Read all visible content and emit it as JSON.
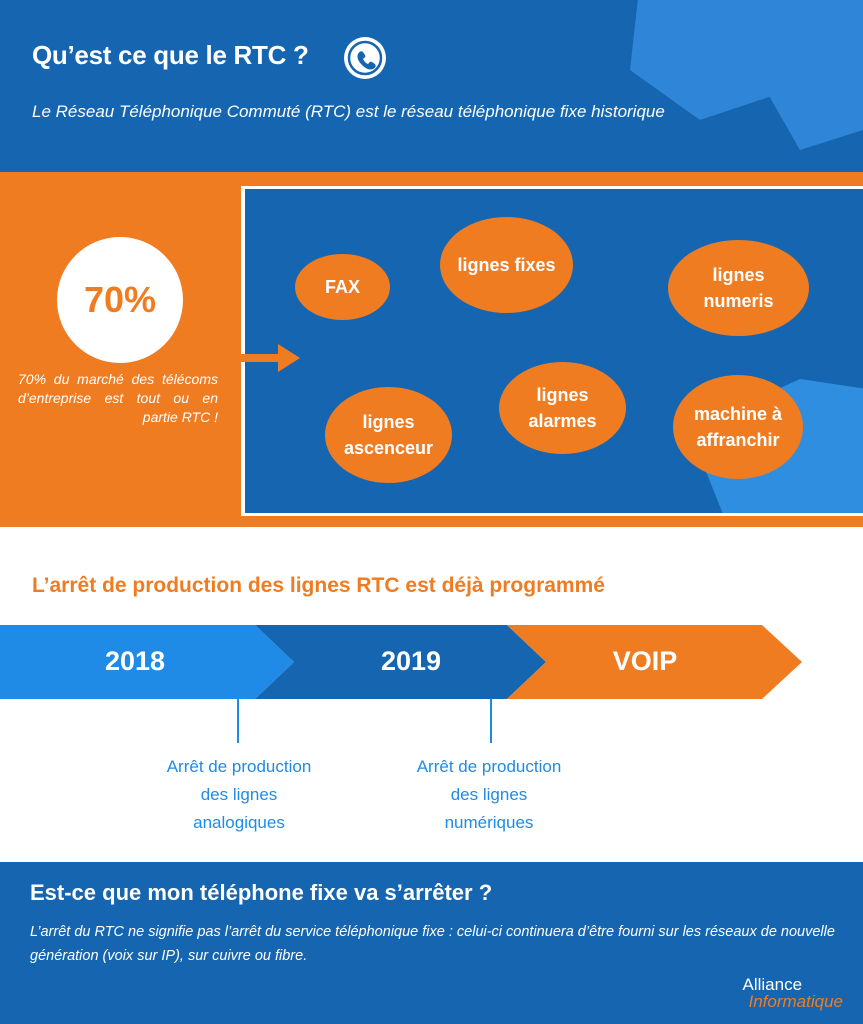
{
  "header": {
    "title": "Qu’est ce que le RTC ?",
    "subtitle": "Le Réseau Téléphonique Commuté (RTC) est le réseau téléphonique fixe historique",
    "icon": "phone-icon"
  },
  "stat": {
    "value": "70%",
    "description": "70% du marché des télécoms d’entreprise est tout ou en partie RTC !"
  },
  "services": [
    "FAX",
    "lignes fixes",
    "lignes numeris",
    "lignes ascenceur",
    "lignes alarmes",
    "machine à affranchir"
  ],
  "timeline": {
    "title": "L’arrêt de production des lignes RTC est déjà programmé",
    "steps": [
      "2018",
      "2019",
      "VOIP"
    ],
    "notes": [
      "Arrêt de production des lignes analogiques",
      "Arrêt de production des lignes numériques"
    ]
  },
  "faq": {
    "question": "Est-ce que mon téléphone fixe va s’arrêter ?",
    "answer": "L’arrêt du RTC ne signifie pas l’arrêt du service téléphonique fixe : celui-ci continuera d’être fourni sur les réseaux de nouvelle génération (voix sur IP), sur cuivre ou fibre."
  },
  "brand": {
    "line1": "Alliance",
    "line2": "Informatique"
  },
  "colors": {
    "blue": "#1565b0",
    "light_blue": "#2f86d8",
    "orange": "#f07c22",
    "timeline_light": "#1f8be6"
  }
}
